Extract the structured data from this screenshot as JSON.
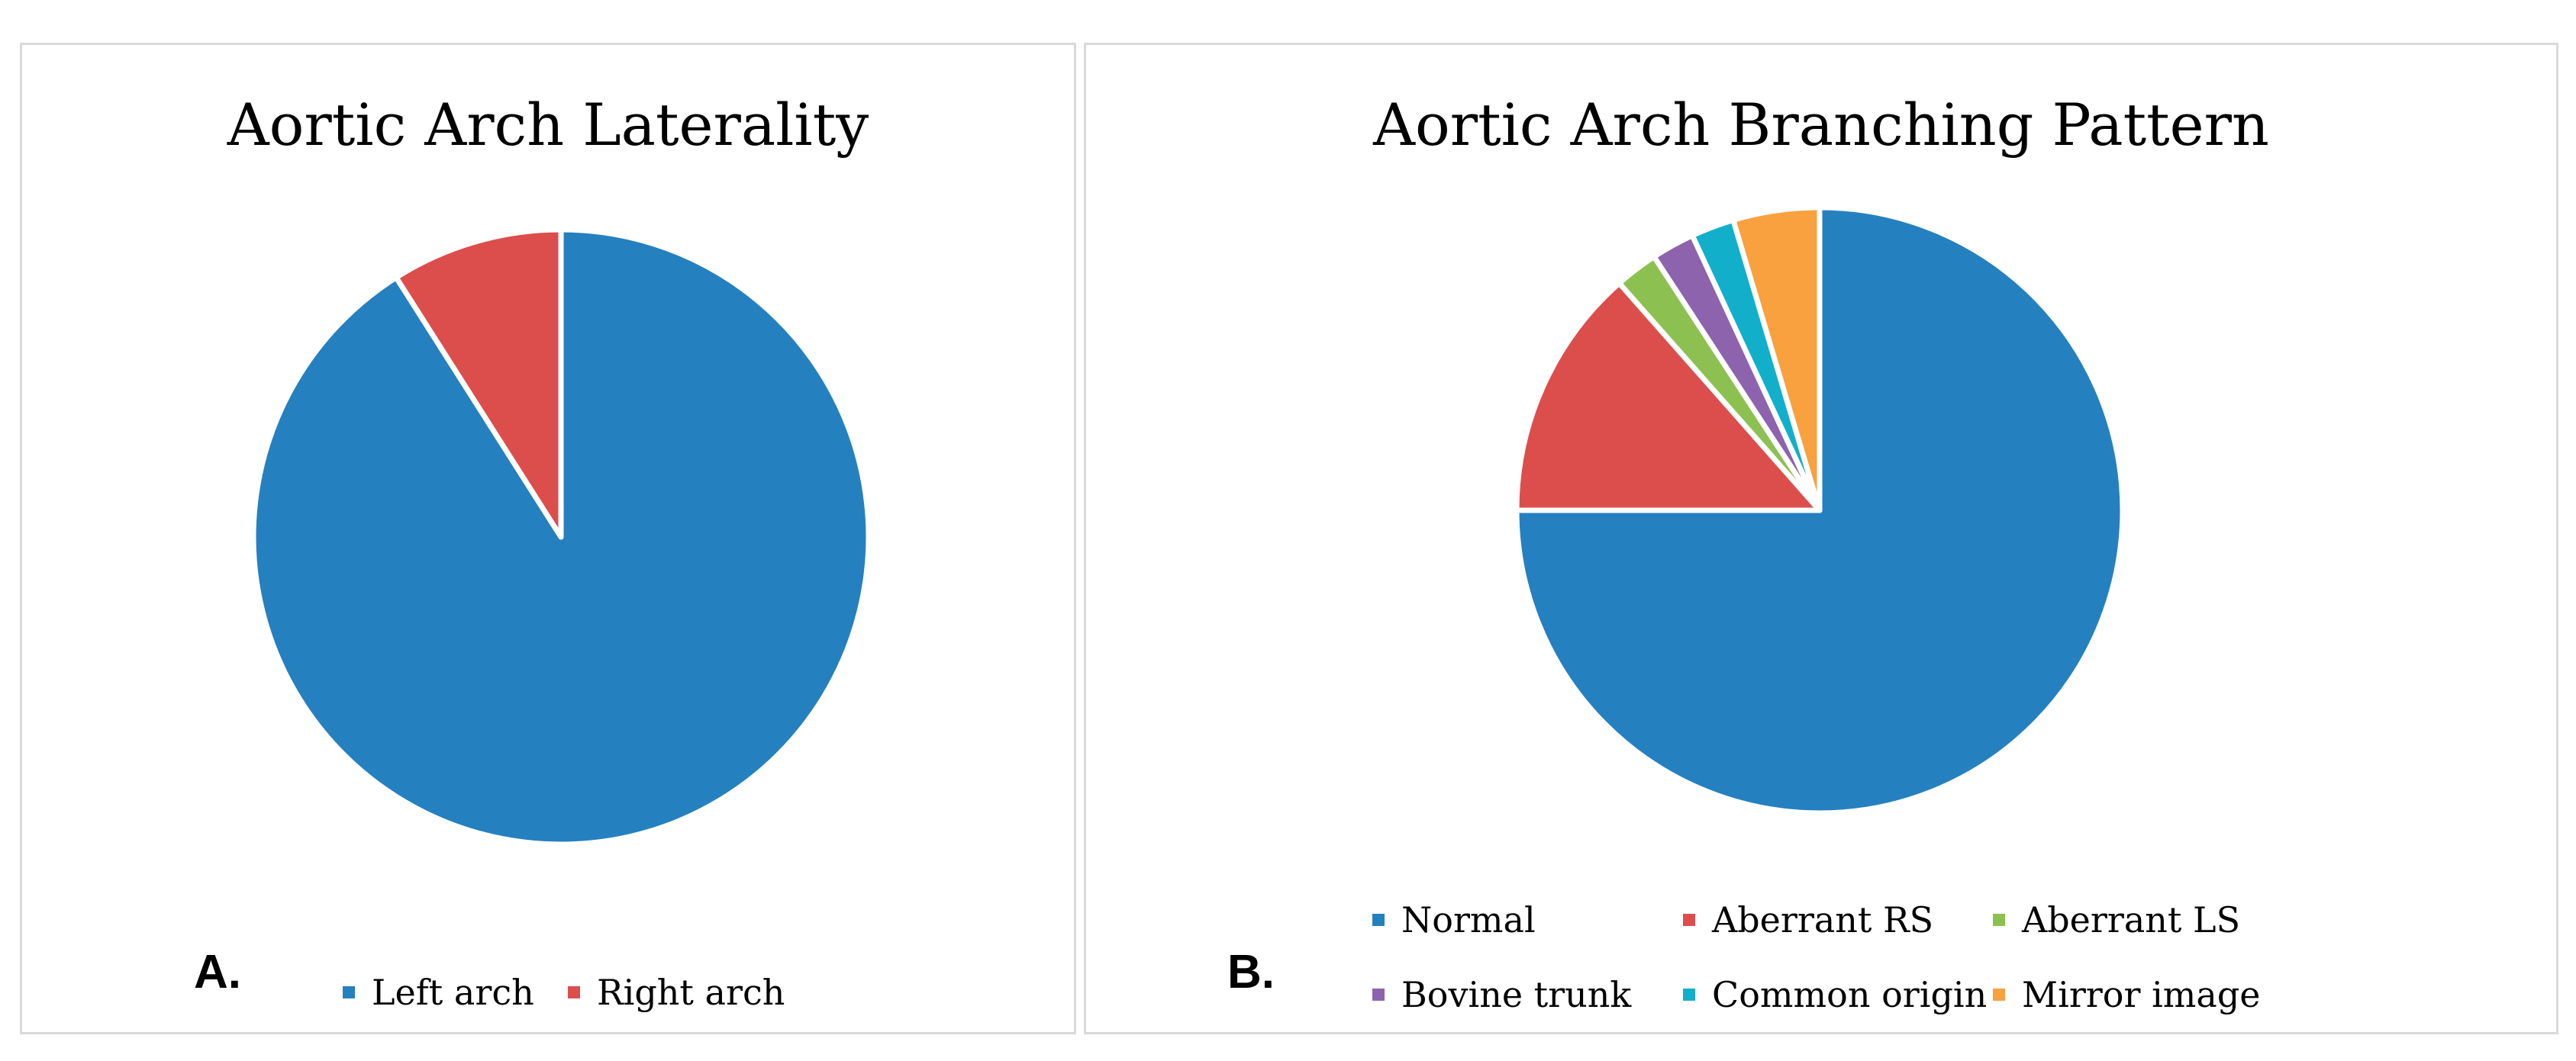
{
  "chart_data": [
    {
      "type": "pie",
      "title": "Aortic Arch Laterality",
      "panel_label": "A.",
      "start_angle_deg": 0,
      "legend_position": "bottom",
      "slices": [
        {
          "label": "Left arch",
          "value": 91,
          "color": "#2580C0"
        },
        {
          "label": "Right arch",
          "value": 9,
          "color": "#DC4E4C"
        }
      ]
    },
    {
      "type": "pie",
      "title": "Aortic Arch Branching Pattern",
      "panel_label": "B.",
      "start_angle_deg": 0,
      "legend_position": "bottom",
      "slices": [
        {
          "label": "Normal",
          "value": 75,
          "color": "#2580C0"
        },
        {
          "label": "Aberrant RS",
          "value": 13.5,
          "color": "#DC4E4C"
        },
        {
          "label": "Aberrant LS",
          "value": 2.3,
          "color": "#8CC152"
        },
        {
          "label": "Bovine trunk",
          "value": 2.3,
          "color": "#8E63AE"
        },
        {
          "label": "Common origin",
          "value": 2.3,
          "color": "#12AFCB"
        },
        {
          "label": "Mirror image",
          "value": 4.6,
          "color": "#F9A03F"
        }
      ]
    }
  ]
}
